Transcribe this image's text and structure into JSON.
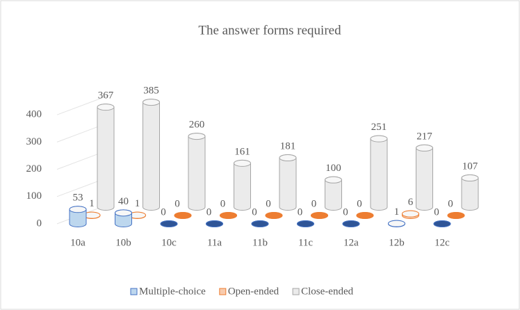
{
  "chart_data": {
    "type": "bar3d",
    "title": "The answer forms required",
    "categories": [
      "10a",
      "10b",
      "10c",
      "11a",
      "11b",
      "11c",
      "12a",
      "12b",
      "12c"
    ],
    "series": [
      {
        "name": "Multiple-choice",
        "color": "#bdd7ee",
        "values": [
          53,
          40,
          0,
          0,
          0,
          0,
          0,
          1,
          0
        ]
      },
      {
        "name": "Open-ended",
        "color": "#f8cbad",
        "values": [
          1,
          1,
          0,
          0,
          0,
          0,
          0,
          6,
          0
        ]
      },
      {
        "name": "Close-ended",
        "color": "#ebebeb",
        "values": [
          367,
          385,
          260,
          161,
          181,
          100,
          251,
          217,
          107
        ]
      }
    ],
    "ylim": [
      0,
      400
    ],
    "yticks": [
      0,
      100,
      200,
      300,
      400
    ],
    "grid": true,
    "legend": "bottom"
  }
}
